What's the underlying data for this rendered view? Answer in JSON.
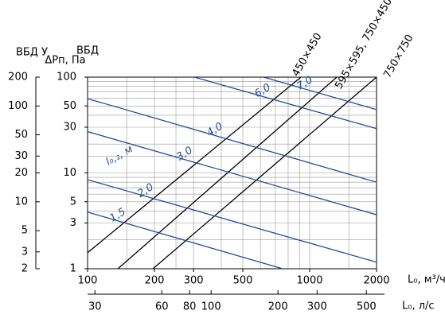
{
  "chart_data": {
    "type": "line",
    "x_label": "L₀, м³/ч",
    "x2_label": "L₀, л/с",
    "y_label": "ΔPп, Па",
    "y_label_b": "ВБД",
    "y2_label": "ВБД У",
    "curve_label": "l₀,₂, м",
    "xscale": "log",
    "yscale": "log",
    "xlim": [
      100,
      2000
    ],
    "xticks": [
      100,
      200,
      300,
      500,
      1000,
      2000
    ],
    "x2lim": [
      27.78,
      555.56
    ],
    "x2ticks": [
      30,
      60,
      80,
      100,
      200,
      300,
      500
    ],
    "ylim": [
      1,
      100
    ],
    "yticks": [
      1,
      3,
      5,
      10,
      30,
      50,
      100
    ],
    "y2lim": [
      2,
      200
    ],
    "y2ticks": [
      2,
      3,
      5,
      10,
      20,
      30,
      50,
      100,
      200
    ],
    "grid": true,
    "xgrid": [
      100,
      150,
      200,
      250,
      300,
      400,
      500,
      600,
      700,
      800,
      900,
      1000,
      1500,
      2000
    ],
    "ygrid": [
      1,
      2,
      3,
      4,
      5,
      6,
      7,
      8,
      9,
      10,
      15,
      20,
      30,
      40,
      50,
      60,
      70,
      80,
      90,
      100
    ],
    "series": [
      {
        "name": "450×450",
        "color": "#000000",
        "x": [
          100,
          913
        ],
        "values": [
          1.47,
          100
        ]
      },
      {
        "name": "595×595, 750×450",
        "color": "#000000",
        "x": [
          137,
          1325
        ],
        "values": [
          1,
          100
        ]
      },
      {
        "name": "750×750",
        "color": "#000000",
        "x": [
          197,
          2000
        ],
        "values": [
          1,
          100
        ]
      },
      {
        "name": "1,5",
        "color": "#1f4e9a",
        "x": [
          100,
          755
        ],
        "values": [
          3.9,
          1
        ]
      },
      {
        "name": "2,0",
        "color": "#1f4e9a",
        "x": [
          100,
          2000
        ],
        "values": [
          8.5,
          1.17
        ]
      },
      {
        "name": "3,0",
        "color": "#1f4e9a",
        "x": [
          100,
          2000
        ],
        "values": [
          27,
          3.66
        ]
      },
      {
        "name": "4,0",
        "color": "#1f4e9a",
        "x": [
          100,
          2000
        ],
        "values": [
          59.6,
          8
        ]
      },
      {
        "name": "6,0",
        "color": "#1f4e9a",
        "x": [
          302,
          2000
        ],
        "values": [
          100,
          29
        ]
      },
      {
        "name": "7,0",
        "color": "#1f4e9a",
        "x": [
          620,
          2000
        ],
        "values": [
          100,
          45.8
        ]
      }
    ]
  }
}
